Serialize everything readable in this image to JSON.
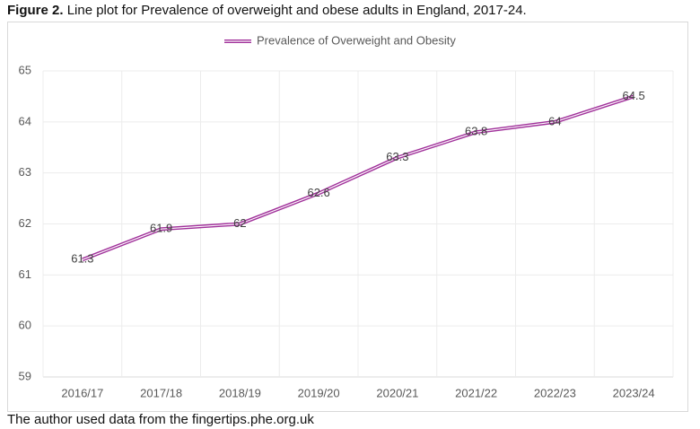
{
  "chart_data": {
    "type": "line",
    "title_label": "Figure 2.",
    "title": "Line plot for Prevalence of overweight and obese adults in England, 2017-24.",
    "note": "The author used data from the fingertips.phe.org.uk",
    "categories": [
      "2016/17",
      "2017/18",
      "2018/19",
      "2019/20",
      "2020/21",
      "2021/22",
      "2022/23",
      "2023/24"
    ],
    "series": [
      {
        "name": "Prevalence of Overweight and Obesity",
        "color": "#a0309a",
        "values": [
          61.3,
          61.9,
          62,
          62.6,
          63.3,
          63.8,
          64,
          64.5
        ]
      }
    ],
    "ylim": [
      59,
      65
    ],
    "yticks": [
      59,
      60,
      61,
      62,
      63,
      64,
      65
    ],
    "grid": true,
    "legend": "top"
  }
}
